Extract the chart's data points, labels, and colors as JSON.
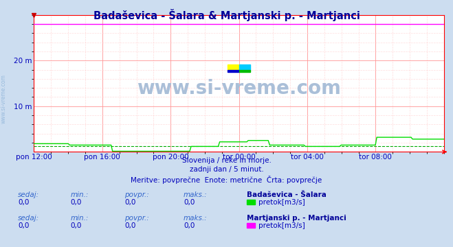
{
  "title": "Badaševica - Šalara & Martjanski p. - Martjanci",
  "title_color": "#000099",
  "bg_color": "#ccddf0",
  "plot_bg_color": "#ffffff",
  "grid_color_major": "#ff9999",
  "grid_color_minor": "#ffcccc",
  "watermark": "www.si-vreme.com",
  "watermark_color": "#aabfd8",
  "subtitle_lines": [
    "Slovenija / reke in morje.",
    "zadnji dan / 5 minut.",
    "Meritve: povprečne  Enote: metrične  Črta: povprečje"
  ],
  "xlabel_ticks": [
    "pon 12:00",
    "pon 16:00",
    "pon 20:00",
    "tor 00:00",
    "tor 04:00",
    "tor 08:00"
  ],
  "ylim": [
    0,
    30
  ],
  "num_points": 288,
  "series1_color": "#00dd00",
  "series2_color": "#ff00ff",
  "series1_dashed_color": "#00aa00",
  "series1_label": "pretok[m3/s]",
  "series2_label": "pretok[m3/s]",
  "station1_name": "Badaševica - Šalara",
  "station2_name": "Martjanski p. - Martjanci",
  "axis_color": "#ff0000",
  "stats_color": "#0000bb",
  "stats_label_color": "#3366cc",
  "legend_box1_color": "#00dd00",
  "legend_box2_color": "#ff00ff",
  "logo_colors": [
    "#ffff00",
    "#00ccff",
    "#0000cc",
    "#00bb00"
  ],
  "left_text_color": "#99bbdd"
}
